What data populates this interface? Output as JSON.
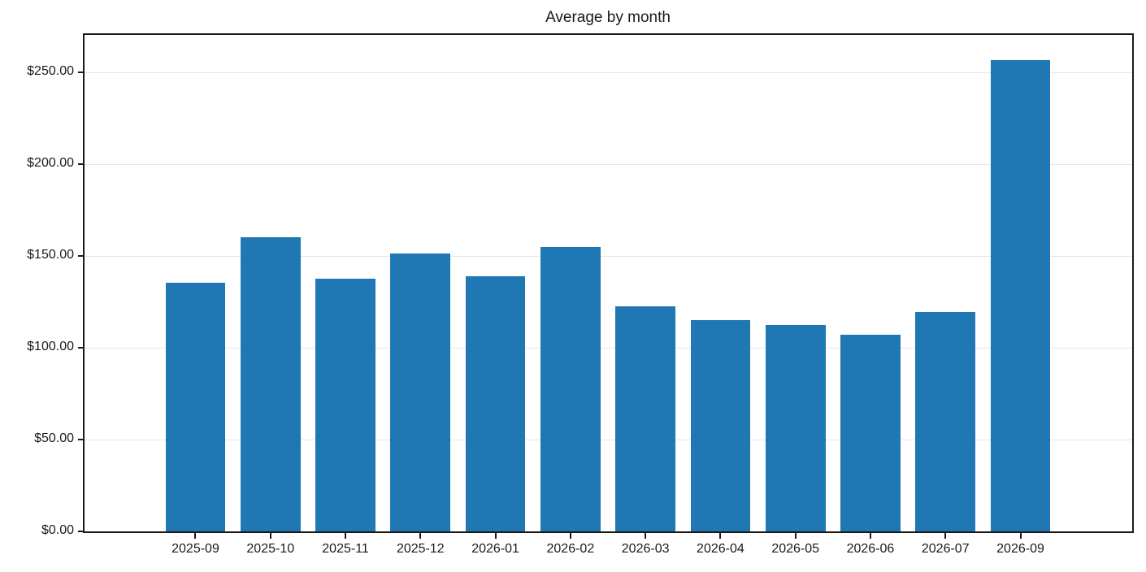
{
  "title": "Average by month",
  "colors": {
    "bar": "#1f77b4",
    "grid": "#e6e6e6",
    "axis": "#1a1a1a",
    "text": "#1a1a1a",
    "background": "#ffffff"
  },
  "chart_data": {
    "type": "bar",
    "title": "Average by month",
    "xlabel": "",
    "ylabel": "",
    "categories": [
      "2025-09",
      "2025-10",
      "2025-11",
      "2025-12",
      "2026-01",
      "2026-02",
      "2026-03",
      "2026-04",
      "2026-05",
      "2026-06",
      "2026-07",
      "2026-09"
    ],
    "values": [
      135.3,
      160.3,
      137.8,
      151.5,
      139.2,
      155.0,
      122.7,
      115.0,
      112.5,
      107.0,
      119.5,
      257.0
    ],
    "ylim": [
      0,
      271
    ],
    "yticks": [
      0,
      50,
      100,
      150,
      200,
      250
    ],
    "ytick_labels": [
      "$0.00",
      "$50.00",
      "$100.00",
      "$150.00",
      "$200.00",
      "$250.00"
    ],
    "grid": true,
    "legend": false,
    "legend_position": "none",
    "bar_width_fraction": 0.8
  }
}
